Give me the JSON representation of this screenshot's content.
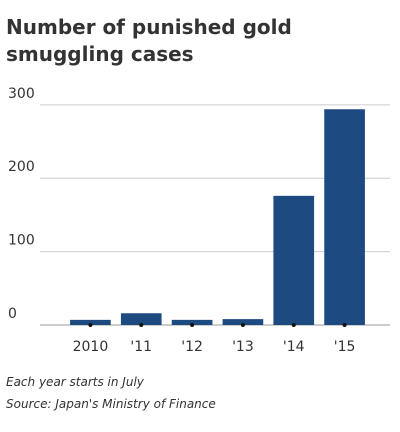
{
  "chart_data": {
    "type": "bar",
    "title": "Number of punished gold smuggling cases",
    "categories": [
      "2010",
      "'11",
      "'12",
      "'13",
      "'14",
      "'15"
    ],
    "values": [
      7,
      16,
      7,
      8,
      176,
      294
    ],
    "color": "#1d4a80",
    "ylim": [
      0,
      310
    ],
    "yticks": [
      0,
      100,
      200,
      300
    ],
    "grid": true,
    "notes": [
      "Each year starts in July",
      "Source: Japan's Ministry of Finance"
    ]
  }
}
